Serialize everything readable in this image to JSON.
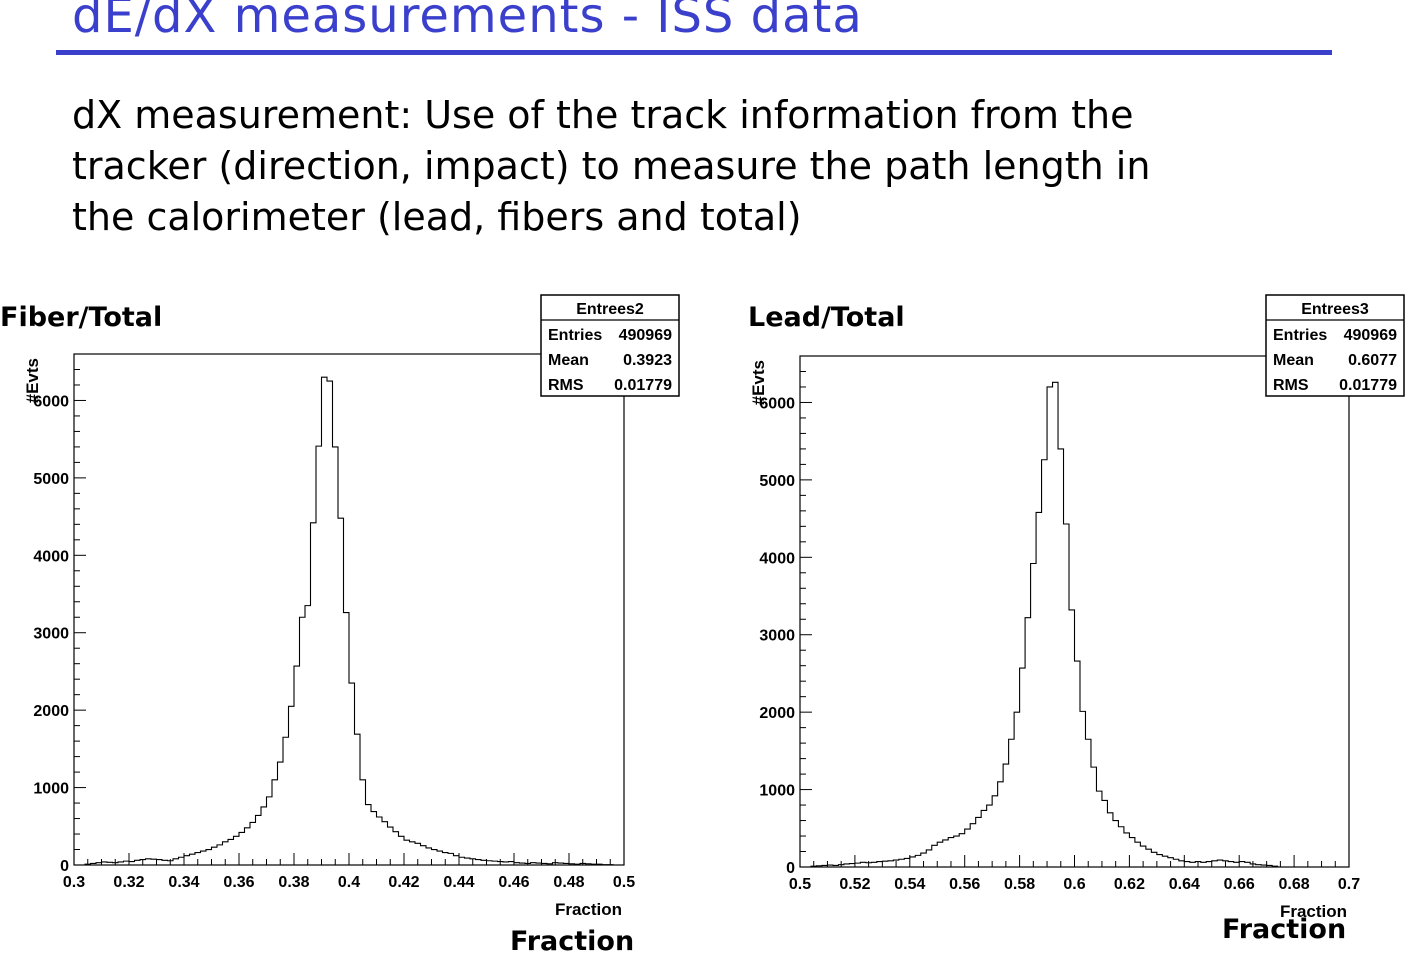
{
  "slide": {
    "title": "dE/dX  measurements - ISS data",
    "body_lines": [
      "dX measurement: Use of the track information from the",
      "tracker  (direction, impact) to measure the path length in",
      "the calorimeter (lead, fibers and total)"
    ]
  },
  "colors": {
    "title": "#3a3fcc",
    "rule": "#3a3fcc",
    "histogram": "#000000"
  },
  "panels": [
    {
      "label": "Fiber/Total",
      "xlabel_large": "Fraction"
    },
    {
      "label": "Lead/Total",
      "xlabel_large": "Fraction"
    }
  ],
  "chart_data": [
    {
      "type": "bar",
      "histogram": "step",
      "title": "",
      "xlabel": "Fraction",
      "ylabel": "#Evts",
      "xlim": [
        0.3,
        0.5
      ],
      "ylim": [
        0,
        6600
      ],
      "xticks": [
        "0.3",
        "0.32",
        "0.34",
        "0.36",
        "0.38",
        "0.4",
        "0.42",
        "0.44",
        "0.46",
        "0.48",
        "0.5"
      ],
      "yticks": [
        "0",
        "1000",
        "2000",
        "3000",
        "4000",
        "5000",
        "6000"
      ],
      "grid": false,
      "bin_edges_start": 0.3,
      "bin_width": 0.002,
      "values": [
        0,
        0,
        10,
        20,
        30,
        40,
        35,
        30,
        40,
        50,
        45,
        60,
        70,
        80,
        75,
        70,
        60,
        55,
        80,
        100,
        120,
        140,
        160,
        180,
        200,
        230,
        260,
        300,
        330,
        370,
        420,
        480,
        550,
        640,
        750,
        880,
        1100,
        1330,
        1650,
        2050,
        2570,
        3200,
        3350,
        4420,
        5410,
        6300,
        6250,
        5400,
        4480,
        3260,
        2350,
        1690,
        1100,
        780,
        690,
        620,
        560,
        490,
        430,
        370,
        320,
        300,
        280,
        250,
        220,
        200,
        180,
        160,
        150,
        120,
        100,
        90,
        80,
        70,
        60,
        55,
        50,
        45,
        40,
        45,
        30,
        25,
        20,
        30,
        25,
        20,
        15,
        30,
        25,
        20,
        15,
        10,
        20,
        15,
        10,
        10,
        5,
        5,
        0,
        0
      ],
      "stats": {
        "name": "Entrees2",
        "rows": [
          {
            "label": "Entries",
            "value": "490969"
          },
          {
            "label": "Mean",
            "value": "0.3923"
          },
          {
            "label": "RMS",
            "value": "0.01779"
          }
        ]
      }
    },
    {
      "type": "bar",
      "histogram": "step",
      "title": "",
      "xlabel": "Fraction",
      "ylabel": "#Evts",
      "xlim": [
        0.5,
        0.7
      ],
      "ylim": [
        0,
        6600
      ],
      "xticks": [
        "0.5",
        "0.52",
        "0.54",
        "0.56",
        "0.58",
        "0.6",
        "0.62",
        "0.64",
        "0.66",
        "0.68",
        "0.7"
      ],
      "yticks": [
        "0",
        "1000",
        "2000",
        "3000",
        "4000",
        "5000",
        "6000"
      ],
      "grid": false,
      "bin_edges_start": 0.5,
      "bin_width": 0.002,
      "values": [
        0,
        0,
        10,
        15,
        20,
        25,
        20,
        30,
        40,
        45,
        50,
        60,
        55,
        60,
        70,
        75,
        80,
        90,
        100,
        110,
        130,
        150,
        180,
        220,
        280,
        320,
        350,
        380,
        400,
        430,
        490,
        560,
        640,
        730,
        800,
        920,
        1100,
        1330,
        1650,
        2000,
        2570,
        3220,
        3920,
        4580,
        5260,
        6200,
        6260,
        5400,
        4430,
        3320,
        2660,
        2010,
        1650,
        1290,
        980,
        860,
        700,
        600,
        520,
        440,
        380,
        320,
        270,
        230,
        190,
        160,
        140,
        120,
        100,
        80,
        70,
        60,
        70,
        60,
        70,
        80,
        90,
        80,
        70,
        60,
        70,
        60,
        40,
        30,
        25,
        20,
        10,
        0,
        0,
        0,
        0,
        0,
        0,
        0,
        0,
        0,
        0,
        0,
        0,
        0
      ],
      "stats": {
        "name": "Entrees3",
        "rows": [
          {
            "label": "Entries",
            "value": "490969"
          },
          {
            "label": "Mean",
            "value": "0.6077"
          },
          {
            "label": "RMS",
            "value": "0.01779"
          }
        ]
      }
    }
  ]
}
